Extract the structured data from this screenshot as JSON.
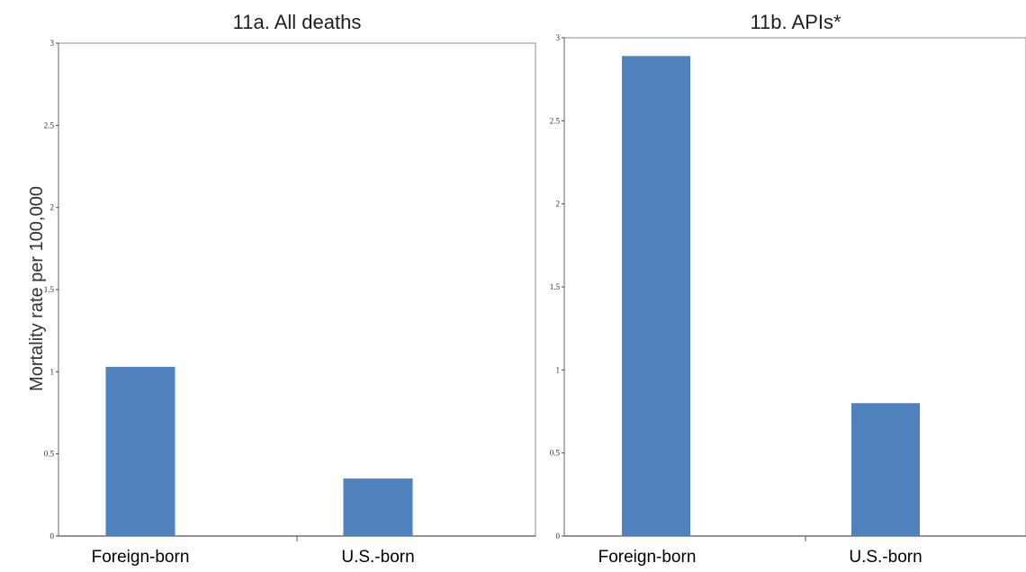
{
  "chart_data": [
    {
      "type": "bar",
      "title": "11a. All deaths",
      "ylabel": "Mortality rate per 100,000",
      "xlabel": "",
      "categories": [
        "Foreign-born",
        "U.S.-born"
      ],
      "values": [
        1.03,
        0.35
      ],
      "ylim": [
        0,
        3
      ],
      "yticks": [
        0,
        0.5,
        1,
        1.5,
        2,
        2.5,
        3
      ],
      "ytick_labels": [
        "0",
        "0.5",
        "1",
        "1.5",
        "2",
        "2.5",
        "3"
      ],
      "grid": false,
      "legend": "none",
      "bar_color": "#4f81bd"
    },
    {
      "type": "bar",
      "title": "11b. APIs*",
      "ylabel": "",
      "xlabel": "",
      "categories": [
        "Foreign-born",
        "U.S.-born"
      ],
      "values": [
        2.89,
        0.8
      ],
      "ylim": [
        0,
        3
      ],
      "yticks": [
        0,
        0.5,
        1,
        1.5,
        2,
        2.5,
        3
      ],
      "ytick_labels": [
        "0",
        "0.5",
        "1",
        "1.5",
        "2",
        "2.5",
        "3"
      ],
      "grid": false,
      "legend": "none",
      "bar_color": "#4f81bd"
    }
  ]
}
